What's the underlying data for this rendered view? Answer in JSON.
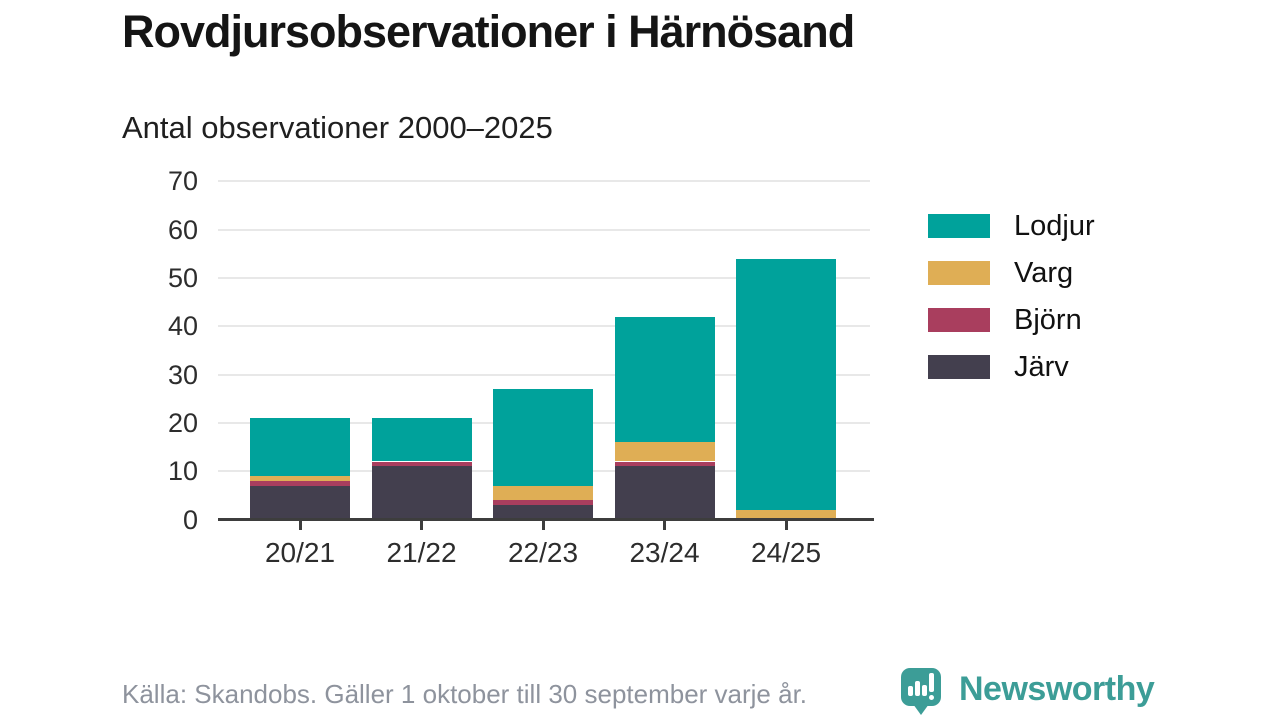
{
  "header": {
    "title": "Rovdjursobservationer i Härnösand",
    "subtitle": "Antal observationer 2000–2025"
  },
  "chart_data": {
    "type": "bar",
    "stacked": true,
    "title": "Rovdjursobservationer i Härnösand",
    "subtitle": "Antal observationer 2000–2025",
    "categories": [
      "20/21",
      "21/22",
      "22/23",
      "23/24",
      "24/25"
    ],
    "series": [
      {
        "name": "Järv",
        "color": "#433f4e",
        "values": [
          7,
          11,
          3,
          11,
          0
        ]
      },
      {
        "name": "Björn",
        "color": "#a93e5e",
        "values": [
          1,
          1,
          1,
          1,
          0
        ]
      },
      {
        "name": "Varg",
        "color": "#dfae55",
        "values": [
          1,
          0,
          3,
          4,
          2
        ]
      },
      {
        "name": "Lodjur",
        "color": "#00a29b",
        "values": [
          12,
          9,
          20,
          26,
          52
        ]
      }
    ],
    "totals": [
      21,
      21,
      27,
      42,
      54
    ],
    "legend_order": [
      "Lodjur",
      "Varg",
      "Björn",
      "Järv"
    ],
    "legend_position": "right",
    "y_ticks": [
      0,
      10,
      20,
      30,
      40,
      50,
      60,
      70
    ],
    "ylim": [
      0,
      70
    ],
    "xlabel": "",
    "ylabel": "",
    "grid": true
  },
  "footer": {
    "source": "Källa: Skandobs. Gäller 1 oktober till 30 september varje år.",
    "brand": "Newsworthy"
  },
  "colors": {
    "lodjur": "#00a29b",
    "varg": "#dfae55",
    "bjorn": "#a93e5e",
    "jarv": "#433f4e",
    "gridline": "#e8e8e8",
    "axis": "#3d3d3d",
    "footer_text": "#8e939d",
    "brand_teal": "#3c9d97"
  }
}
